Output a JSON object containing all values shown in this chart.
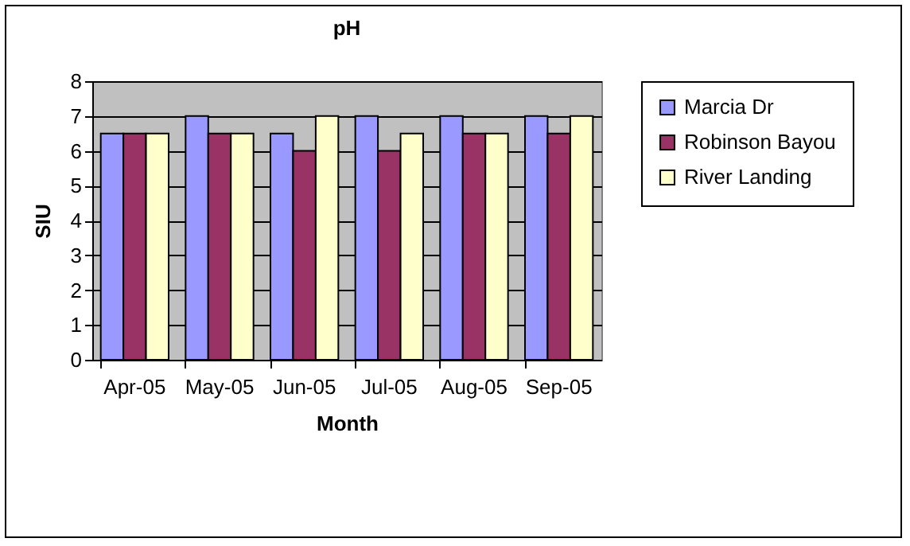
{
  "chart_data": {
    "type": "bar",
    "title": "pH",
    "xlabel": "Month",
    "ylabel": "SIU",
    "categories": [
      "Apr-05",
      "May-05",
      "Jun-05",
      "Jul-05",
      "Aug-05",
      "Sep-05"
    ],
    "series": [
      {
        "name": "Marcia Dr",
        "color": "#9999ff",
        "values": [
          6.5,
          7,
          6.5,
          7,
          7,
          7
        ]
      },
      {
        "name": "Robinson Bayou",
        "color": "#993366",
        "values": [
          6.5,
          6.5,
          6,
          6,
          6.5,
          6.5
        ]
      },
      {
        "name": "River Landing",
        "color": "#ffffcc",
        "values": [
          6.5,
          6.5,
          7,
          6.5,
          6.5,
          7
        ]
      }
    ],
    "ylim": [
      0,
      8
    ],
    "yticks": [
      0,
      1,
      2,
      3,
      4,
      5,
      6,
      7,
      8
    ],
    "grid": "y",
    "legend": "right"
  }
}
